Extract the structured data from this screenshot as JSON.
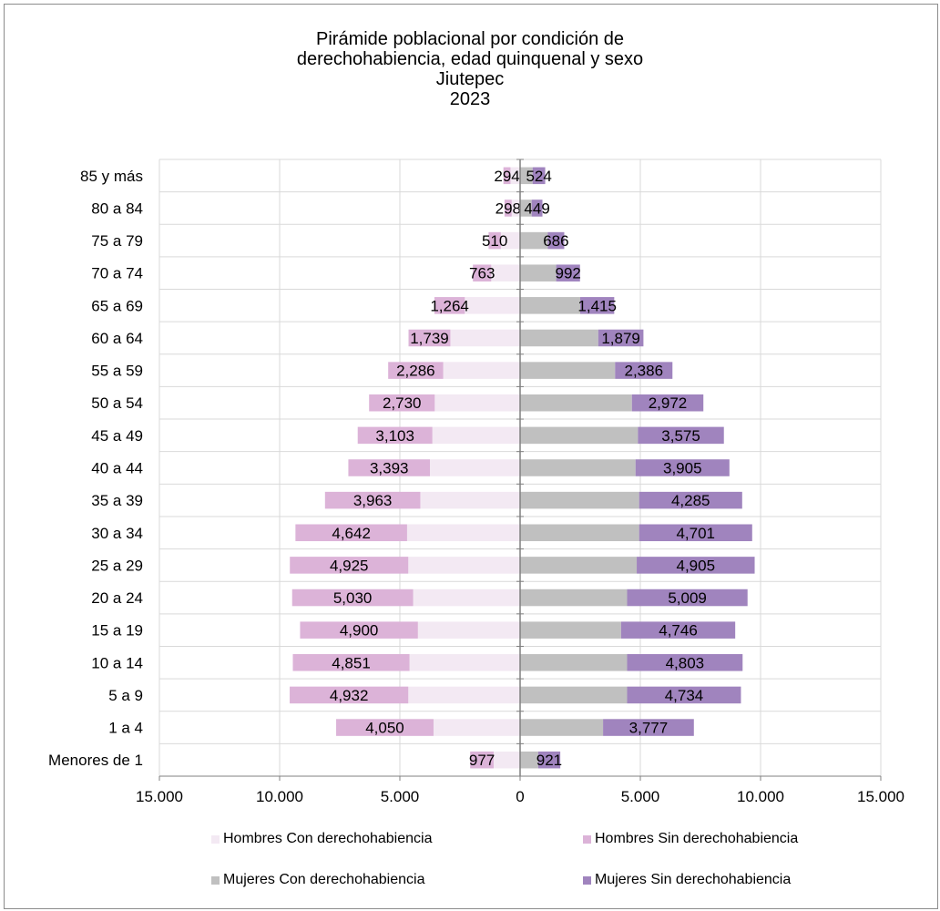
{
  "chart_data": {
    "type": "bar",
    "orientation": "horizontal-stacked-pyramid",
    "title_lines": [
      "Pirámide poblacional por condición de",
      "derechohabiencia, edad quinquenal y sexo",
      "Jiutepec",
      "2023"
    ],
    "categories": [
      "85 y más",
      "80 a 84",
      "75 a 79",
      "70 a 74",
      "65 a 69",
      "60 a 64",
      "55 a 59",
      "50 a 54",
      "45 a 49",
      "40 a 44",
      "35 a 39",
      "30 a 34",
      "25 a 29",
      "20 a 24",
      "15 a 19",
      "10 a 14",
      "5 a 9",
      "1 a 4",
      "Menores de 1"
    ],
    "series": [
      {
        "name": "Hombres Con derechohabiencia",
        "color": "#f3e9f3",
        "side": "left",
        "values": [
          400,
          350,
          800,
          1200,
          2300,
          2900,
          3200,
          3550,
          3650,
          3750,
          4150,
          4700,
          4650,
          4450,
          4250,
          4600,
          4650,
          3600,
          1100
        ]
      },
      {
        "name": "Hombres Sin derechohabiencia",
        "color": "#dcb3d8",
        "side": "left",
        "values": [
          294,
          298,
          510,
          763,
          1264,
          1739,
          2286,
          2730,
          3103,
          3393,
          3963,
          4642,
          4925,
          5030,
          4900,
          4851,
          4932,
          4050,
          977
        ]
      },
      {
        "name": "Mujeres Con derechohabiencia",
        "color": "#c0c0c0",
        "side": "right",
        "values": [
          520,
          480,
          1150,
          1500,
          2500,
          3250,
          3950,
          4650,
          4900,
          4800,
          4950,
          4950,
          4850,
          4450,
          4200,
          4450,
          4450,
          3450,
          750
        ]
      },
      {
        "name": "Mujeres Sin derechohabiencia",
        "color": "#a084be",
        "side": "right",
        "values": [
          524,
          449,
          686,
          992,
          1415,
          1879,
          2386,
          2972,
          3575,
          3905,
          4285,
          4701,
          4905,
          5009,
          4746,
          4803,
          4734,
          3777,
          921
        ]
      }
    ],
    "data_label_series": [
      "Hombres Sin derechohabiencia",
      "Mujeres Sin derechohabiencia"
    ],
    "xlim": [
      -15000,
      15000
    ],
    "xticks": [
      -15000,
      -10000,
      -5000,
      0,
      5000,
      10000,
      15000
    ],
    "xtick_labels": [
      "15,000",
      "10,000",
      "5,000",
      "0",
      "5,000",
      "10,000",
      "15,000"
    ],
    "grid": true,
    "legend_position": "bottom",
    "xlabel": "",
    "ylabel": ""
  }
}
